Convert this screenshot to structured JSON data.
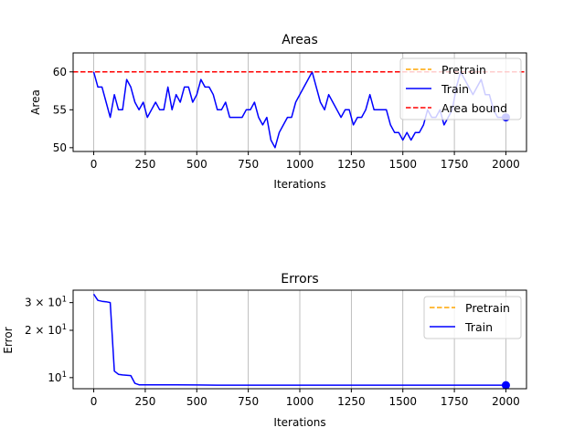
{
  "chart_data": [
    {
      "type": "line",
      "title": "Areas",
      "xlabel": "Iterations",
      "ylabel": "Area",
      "xlim": [
        -100,
        2100
      ],
      "ylim": [
        49.5,
        62.5
      ],
      "xticks": [
        0,
        250,
        500,
        750,
        1000,
        1250,
        1500,
        1750,
        2000
      ],
      "yticks": [
        50,
        55,
        60
      ],
      "grid": "x",
      "legend": {
        "placement": "top-right"
      },
      "series": [
        {
          "name": "Pretrain",
          "color": "#ffa500",
          "style": "dashed",
          "x": [],
          "y": []
        },
        {
          "name": "Train",
          "color": "#0000ff",
          "style": "solid",
          "x": [
            0,
            20,
            40,
            60,
            80,
            100,
            120,
            140,
            160,
            180,
            200,
            220,
            240,
            260,
            280,
            300,
            320,
            340,
            360,
            380,
            400,
            420,
            440,
            460,
            480,
            500,
            520,
            540,
            560,
            580,
            600,
            620,
            640,
            660,
            680,
            700,
            720,
            740,
            760,
            780,
            800,
            820,
            840,
            860,
            880,
            900,
            920,
            940,
            960,
            980,
            1000,
            1020,
            1040,
            1060,
            1080,
            1100,
            1120,
            1140,
            1160,
            1180,
            1200,
            1220,
            1240,
            1260,
            1280,
            1300,
            1320,
            1340,
            1360,
            1380,
            1400,
            1420,
            1440,
            1460,
            1480,
            1500,
            1520,
            1540,
            1560,
            1580,
            1600,
            1620,
            1640,
            1660,
            1680,
            1700,
            1720,
            1740,
            1760,
            1780,
            1800,
            1820,
            1840,
            1860,
            1880,
            1900,
            1920,
            1940,
            1960,
            1980,
            2000
          ],
          "y": [
            60,
            58,
            58,
            56,
            54,
            57,
            55,
            55,
            59,
            58,
            56,
            55,
            56,
            54,
            55,
            56,
            55,
            55,
            58,
            55,
            57,
            56,
            58,
            58,
            56,
            57,
            59,
            58,
            58,
            57,
            55,
            55,
            56,
            54,
            54,
            54,
            54,
            55,
            55,
            56,
            54,
            53,
            54,
            51,
            50,
            52,
            53,
            54,
            54,
            56,
            57,
            58,
            59,
            60,
            58,
            56,
            55,
            57,
            56,
            55,
            54,
            55,
            55,
            53,
            54,
            54,
            55,
            57,
            55,
            55,
            55,
            55,
            53,
            52,
            52,
            51,
            52,
            51,
            52,
            52,
            53,
            55,
            54,
            54,
            55,
            53,
            54,
            55,
            58,
            60,
            59,
            58,
            57,
            58,
            59,
            57,
            57,
            55,
            54,
            54,
            54
          ]
        },
        {
          "name": "Area bound",
          "color": "#ff0000",
          "style": "dashed",
          "constant_y": 60
        }
      ],
      "final_marker": {
        "x": 2000,
        "y": 54
      }
    },
    {
      "type": "line",
      "title": "Errors",
      "xlabel": "Iterations",
      "ylabel": "Error",
      "yscale": "log",
      "xlim": [
        -100,
        2100
      ],
      "ylim": [
        8.5,
        36
      ],
      "xticks": [
        0,
        250,
        500,
        750,
        1000,
        1250,
        1500,
        1750,
        2000
      ],
      "yticks": [
        {
          "value": 10,
          "label": "10",
          "sup": "1"
        },
        {
          "value": 20,
          "label": "2 × 10",
          "sup": "1"
        },
        {
          "value": 30,
          "label": "3 × 10",
          "sup": "1"
        }
      ],
      "grid": "x",
      "legend": {
        "placement": "top-right"
      },
      "series": [
        {
          "name": "Pretrain",
          "color": "#ffa500",
          "style": "dashed",
          "x": [],
          "y": []
        },
        {
          "name": "Train",
          "color": "#0000ff",
          "style": "solid",
          "x": [
            0,
            20,
            40,
            60,
            80,
            100,
            120,
            140,
            160,
            180,
            200,
            220,
            250,
            300,
            400,
            500,
            600,
            700,
            800,
            1000,
            1200,
            1400,
            1600,
            1800,
            2000
          ],
          "y": [
            34.0,
            31.0,
            30.6,
            30.4,
            30.0,
            11.0,
            10.5,
            10.4,
            10.35,
            10.3,
            9.2,
            9.0,
            9.0,
            9.0,
            9.0,
            8.98,
            8.95,
            8.95,
            8.95,
            8.95,
            8.95,
            8.95,
            8.95,
            8.95,
            8.95
          ]
        }
      ],
      "final_marker": {
        "x": 2000,
        "y": 8.95
      }
    }
  ]
}
